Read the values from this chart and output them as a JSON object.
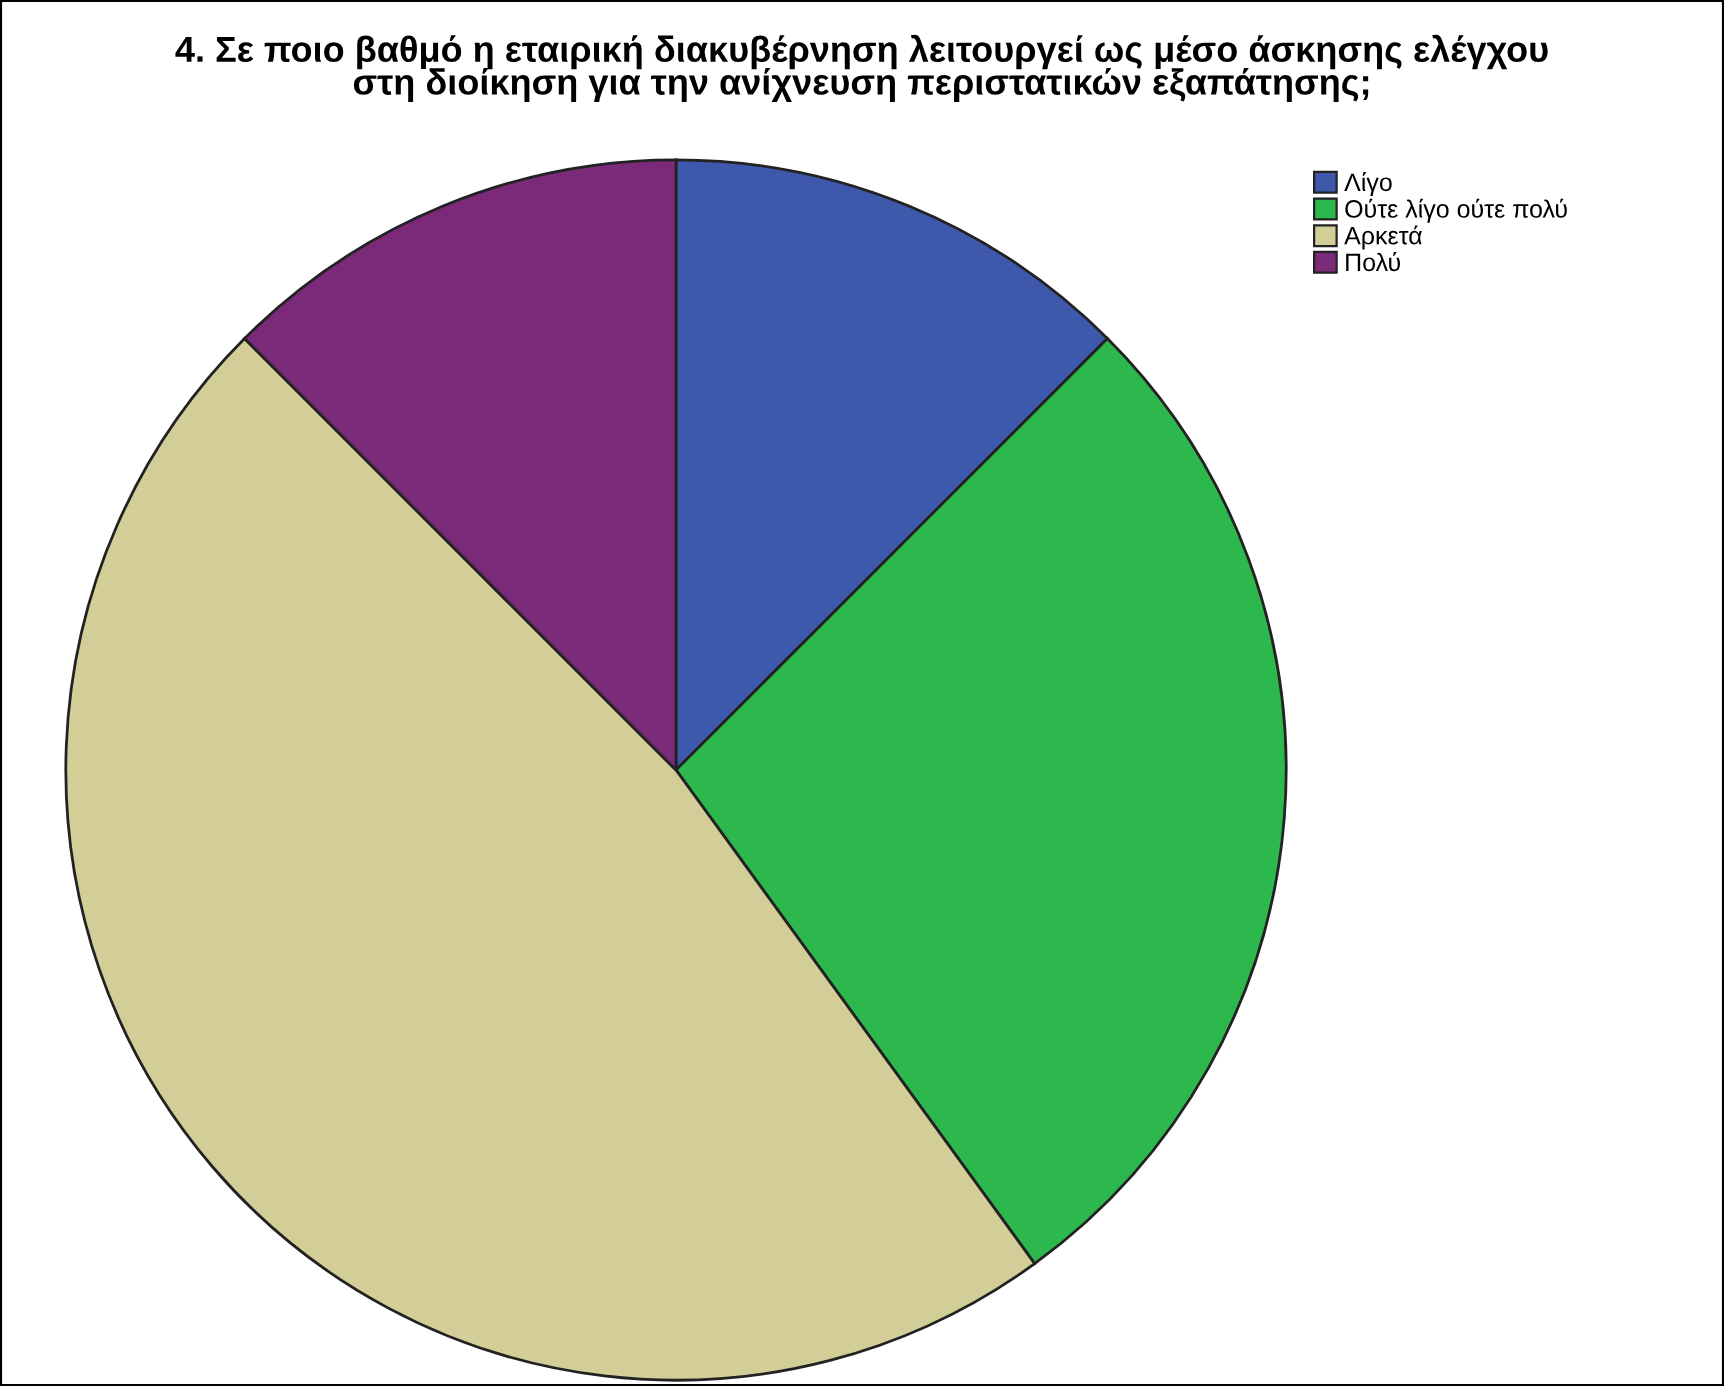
{
  "chart_data": {
    "type": "pie",
    "title": "4. Σε ποιο βαθμό η εταιρική διακυβέρνηση λειτουργεί ως μέσο άσκησης ελέγχου\nστη διοίκηση για την ανίχνευση περιστατικών εξαπάτησης;",
    "categories": [
      "Λίγο",
      "Ούτε λίγο ούτε πολύ",
      "Αρκετά",
      "Πολύ"
    ],
    "values": [
      12.5,
      27.5,
      47.5,
      12.5
    ],
    "colors": [
      "#3e58ac",
      "#2db84d",
      "#d3ce97",
      "#7b2a7a"
    ],
    "legend": "top right"
  }
}
